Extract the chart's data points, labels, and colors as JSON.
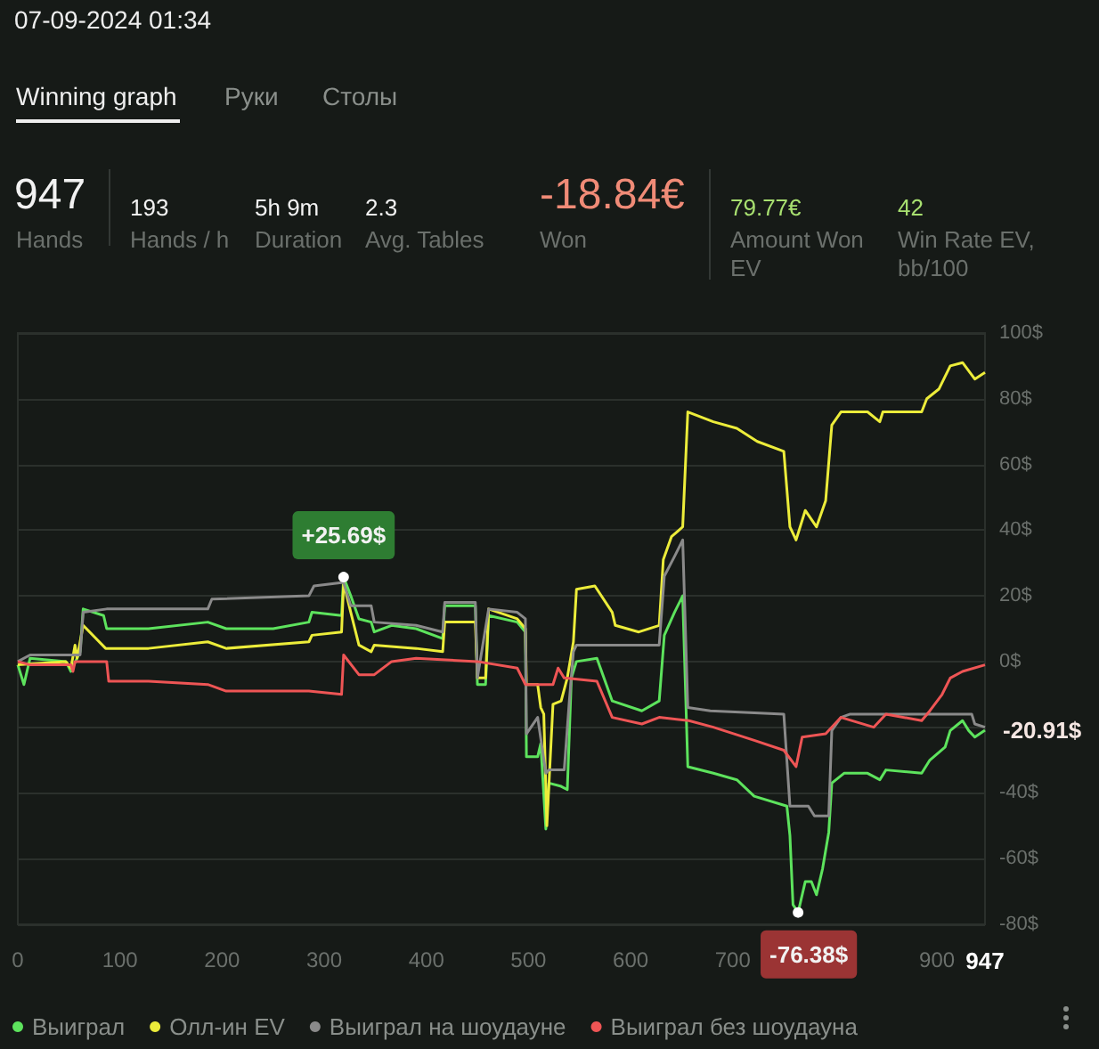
{
  "chart_data": {
    "type": "line",
    "title": "07-09-2024 01:34",
    "annotations": [
      "Winning graph",
      "Руки",
      "Столы",
      "947",
      "Hands",
      "193",
      "Hands / h",
      "5h 9m",
      "Duration",
      "2.3",
      "Avg. Tables",
      "-18.84€",
      "Won",
      "79.77€",
      "Amount Won EV",
      "42",
      "Win Rate EV, bb/100",
      {
        "text": "+25.69$",
        "x": 319,
        "y": 25.69
      },
      {
        "text": "-76.38$",
        "x": 764,
        "y": -76.38
      },
      {
        "text": "-20.91$",
        "x": 947,
        "y": -20.91
      }
    ],
    "xlim": [
      0,
      947
    ],
    "xticks": [
      0,
      100,
      200,
      300,
      400,
      500,
      600,
      700,
      900,
      947
    ],
    "ylim": [
      -80,
      100
    ],
    "yticks": [
      {
        "value": -80,
        "label": "-80$"
      },
      {
        "value": -60,
        "label": "-60$"
      },
      {
        "value": -40,
        "label": "-40$"
      },
      {
        "value": -20,
        "label": null
      },
      {
        "value": 0,
        "label": "0$"
      },
      {
        "value": 20,
        "label": "20$"
      },
      {
        "value": 40,
        "label": "40$"
      },
      {
        "value": 60,
        "label": "60$"
      },
      {
        "value": 80,
        "label": "80$"
      },
      {
        "value": 100,
        "label": "100$"
      }
    ],
    "grid": "y",
    "legend": "bottom left",
    "marker": "none",
    "line_style": "solid",
    "series": [
      {
        "name": "Выиграл",
        "color": "#5de35d",
        "x": [
          0,
          6,
          12,
          47,
          52,
          61,
          64,
          84,
          87,
          128,
          186,
          204,
          250,
          285,
          288,
          317,
          319,
          326,
          334,
          346,
          349,
          366,
          390,
          416,
          418,
          448,
          450,
          458,
          461,
          489,
          497,
          498,
          509,
          512,
          517,
          520,
          532,
          538,
          542,
          547,
          567,
          582,
          611,
          628,
          633,
          643,
          651,
          656,
          681,
          704,
          721,
          753,
          756,
          759,
          764,
          771,
          777,
          782,
          788,
          794,
          797,
          809,
          832,
          844,
          850,
          885,
          893,
          908,
          913,
          925,
          931,
          937,
          947
        ],
        "values": [
          -1,
          -7,
          1,
          0,
          -3,
          3,
          16,
          14,
          10,
          10,
          12,
          10,
          10,
          12,
          15,
          14,
          25.69,
          20,
          13,
          12,
          9,
          11,
          10,
          7,
          17,
          17,
          -7,
          -7,
          14,
          12,
          9,
          -29,
          -29,
          -25,
          -51,
          -37,
          -38,
          -39,
          -5,
          0,
          1,
          -12,
          -15,
          -12,
          8,
          15,
          20,
          -32,
          -34,
          -36,
          -41,
          -44,
          -53,
          -74,
          -76.38,
          -67,
          -67,
          -71,
          -63,
          -52,
          -37,
          -34,
          -34,
          -36,
          -33,
          -34,
          -30,
          -26,
          -21,
          -18,
          -21,
          -23,
          -20.91
        ]
      },
      {
        "name": "Олл-ин EV",
        "color": "#ecec3a",
        "x": [
          0,
          47,
          52,
          56,
          58,
          61,
          64,
          86,
          128,
          186,
          204,
          285,
          288,
          317,
          319,
          326,
          334,
          346,
          349,
          390,
          416,
          418,
          448,
          450,
          458,
          461,
          489,
          497,
          498,
          509,
          512,
          515,
          518,
          524,
          532,
          538,
          544,
          547,
          565,
          582,
          585,
          608,
          628,
          632,
          640,
          651,
          656,
          681,
          704,
          724,
          750,
          756,
          762,
          771,
          782,
          791,
          797,
          806,
          832,
          844,
          847,
          885,
          890,
          902,
          913,
          925,
          937,
          947
        ],
        "values": [
          -1,
          0,
          -2,
          5,
          1,
          6,
          11,
          4,
          4,
          6,
          4,
          6,
          8,
          9,
          24,
          15,
          5,
          3,
          5,
          4,
          3,
          12,
          12,
          -5,
          -5,
          16,
          13,
          10,
          -7,
          -7,
          -14,
          -16,
          -50,
          -13,
          -12,
          -5,
          6,
          22,
          23,
          15,
          11,
          9,
          11,
          31,
          38,
          41,
          76,
          73,
          71,
          67,
          64,
          41,
          37,
          46,
          41,
          49,
          72,
          76,
          76,
          73,
          76,
          76,
          80,
          83,
          90,
          91,
          86,
          88
        ]
      },
      {
        "name": "Выиграл на шоудауне",
        "color": "#8a8a8a",
        "x": [
          0,
          12,
          61,
          64,
          87,
          186,
          190,
          285,
          290,
          317,
          319,
          326,
          346,
          349,
          390,
          416,
          418,
          448,
          450,
          461,
          489,
          497,
          498,
          509,
          517,
          520,
          535,
          540,
          544,
          547,
          628,
          633,
          643,
          651,
          656,
          678,
          750,
          756,
          774,
          780,
          794,
          797,
          806,
          815,
          934,
          937,
          947
        ],
        "values": [
          0,
          2,
          2,
          15,
          16,
          16,
          19,
          20,
          23,
          24,
          24,
          17,
          17,
          12,
          11,
          9,
          18,
          18,
          -5,
          16,
          15,
          13,
          -22,
          -17,
          -34,
          -33,
          -33,
          -12,
          3,
          5,
          5,
          26,
          32,
          37,
          -14,
          -15,
          -16,
          -44,
          -44,
          -47,
          -47,
          -21,
          -17,
          -16,
          -16,
          -19,
          -20
        ]
      },
      {
        "name": "Выиграл без шоудауна",
        "color": "#ee5555",
        "x": [
          0,
          12,
          52,
          54,
          56,
          87,
          89,
          128,
          186,
          204,
          285,
          317,
          319,
          334,
          349,
          366,
          390,
          450,
          489,
          497,
          524,
          529,
          535,
          567,
          582,
          611,
          628,
          657,
          681,
          721,
          750,
          762,
          768,
          791,
          806,
          838,
          850,
          885,
          893,
          905,
          913,
          925,
          947
        ],
        "values": [
          0,
          -1,
          -1,
          -3,
          0,
          0,
          -6,
          -6,
          -7,
          -9,
          -9,
          -10,
          2,
          -4,
          -4,
          0,
          1,
          0,
          -2,
          -7,
          -7,
          -2,
          -5,
          -6,
          -17,
          -19,
          -17,
          -18,
          -20,
          -24,
          -27,
          -32,
          -23,
          -22,
          -17,
          -20,
          -16,
          -18,
          -15,
          -10,
          -5,
          -3,
          -1
        ]
      }
    ]
  }
}
